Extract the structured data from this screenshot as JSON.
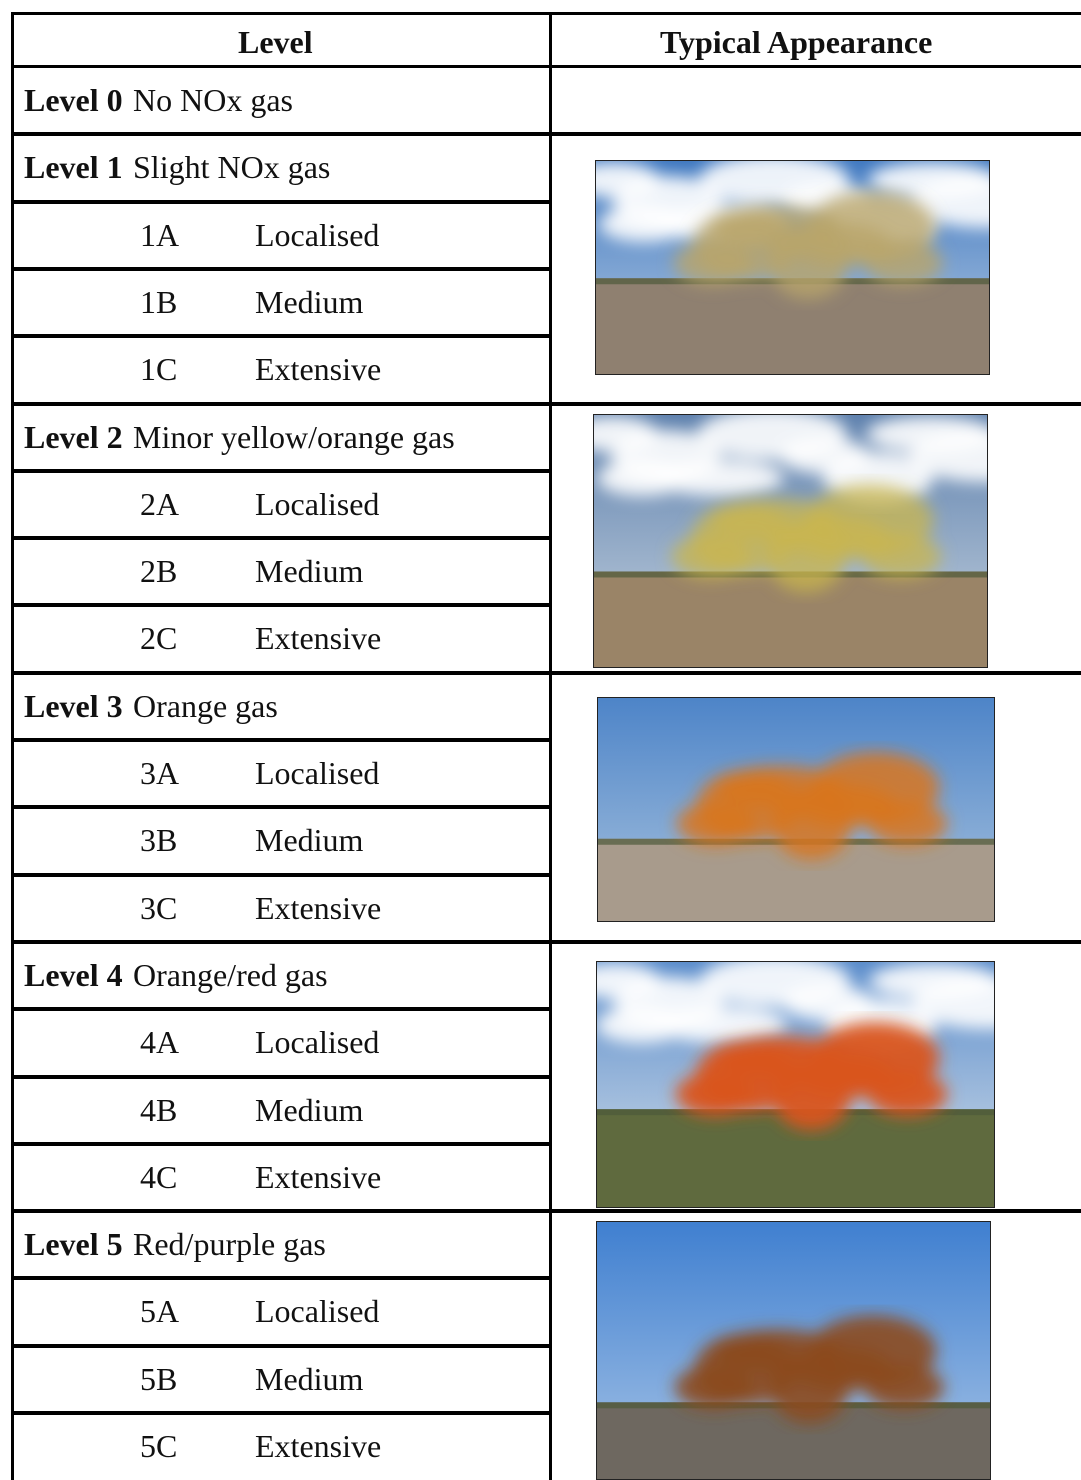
{
  "header": {
    "level": "Level",
    "appearance": "Typical Appearance"
  },
  "levels": [
    {
      "code": "Level 0",
      "description": "No NOx gas",
      "sublevels": []
    },
    {
      "code": "Level 1",
      "description": "Slight NOx gas",
      "sublevels": [
        {
          "code": "1A",
          "extent": "Localised"
        },
        {
          "code": "1B",
          "extent": "Medium"
        },
        {
          "code": "1C",
          "extent": "Extensive"
        }
      ]
    },
    {
      "code": "Level 2",
      "description": "Minor yellow/orange gas",
      "sublevels": [
        {
          "code": "2A",
          "extent": "Localised"
        },
        {
          "code": "2B",
          "extent": "Medium"
        },
        {
          "code": "2C",
          "extent": "Extensive"
        }
      ]
    },
    {
      "code": "Level 3",
      "description": "Orange gas",
      "sublevels": [
        {
          "code": "3A",
          "extent": "Localised"
        },
        {
          "code": "3B",
          "extent": "Medium"
        },
        {
          "code": "3C",
          "extent": "Extensive"
        }
      ]
    },
    {
      "code": "Level 4",
      "description": "Orange/red gas",
      "sublevels": [
        {
          "code": "4A",
          "extent": "Localised"
        },
        {
          "code": "4B",
          "extent": "Medium"
        },
        {
          "code": "4C",
          "extent": "Extensive"
        }
      ]
    },
    {
      "code": "Level 5",
      "description": "Red/purple gas",
      "sublevels": [
        {
          "code": "5A",
          "extent": "Localised"
        },
        {
          "code": "5B",
          "extent": "Medium"
        },
        {
          "code": "5C",
          "extent": "Extensive"
        }
      ]
    }
  ]
}
